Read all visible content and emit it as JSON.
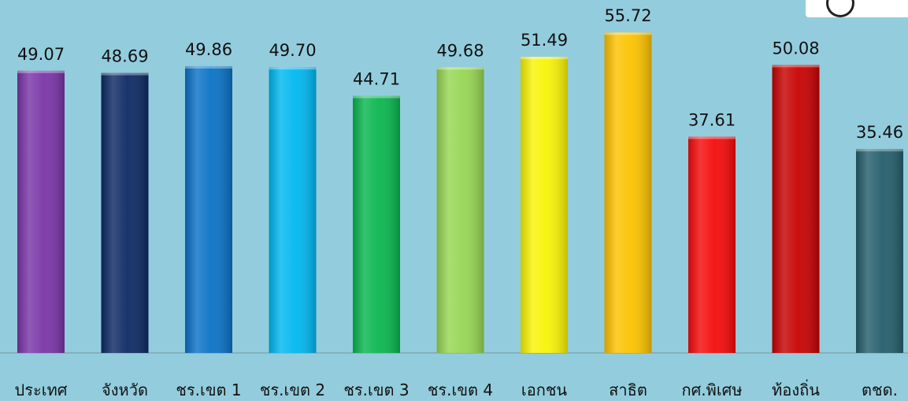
{
  "chart_data": {
    "type": "bar",
    "title": "",
    "xlabel": "",
    "ylabel": "",
    "ylim": [
      0,
      60
    ],
    "grid": false,
    "legend": "none",
    "categories": [
      "ประเทศ",
      "จังหวัด",
      "ชร.เขต 1",
      "ชร.เขต 2",
      "ชร.เขต 3",
      "ชร.เขต 4",
      "เอกชน",
      "สาธิต",
      "กศ.พิเศษ",
      "ท้องถิ่น",
      "ตชด."
    ],
    "values": [
      49.07,
      48.69,
      49.86,
      49.7,
      44.71,
      49.68,
      51.49,
      55.72,
      37.61,
      50.08,
      35.46
    ],
    "value_labels": [
      "49.07",
      "48.69",
      "49.86",
      "49.70",
      "44.71",
      "49.68",
      "51.49",
      "55.72",
      "37.61",
      "50.08",
      "35.46"
    ],
    "colors": [
      "#7a35a8",
      "#0c2a63",
      "#0a72c6",
      "#00b8f0",
      "#09b64f",
      "#97d654",
      "#f8f306",
      "#fcc300",
      "#f50b0b",
      "#c70202",
      "#245e6c"
    ]
  }
}
